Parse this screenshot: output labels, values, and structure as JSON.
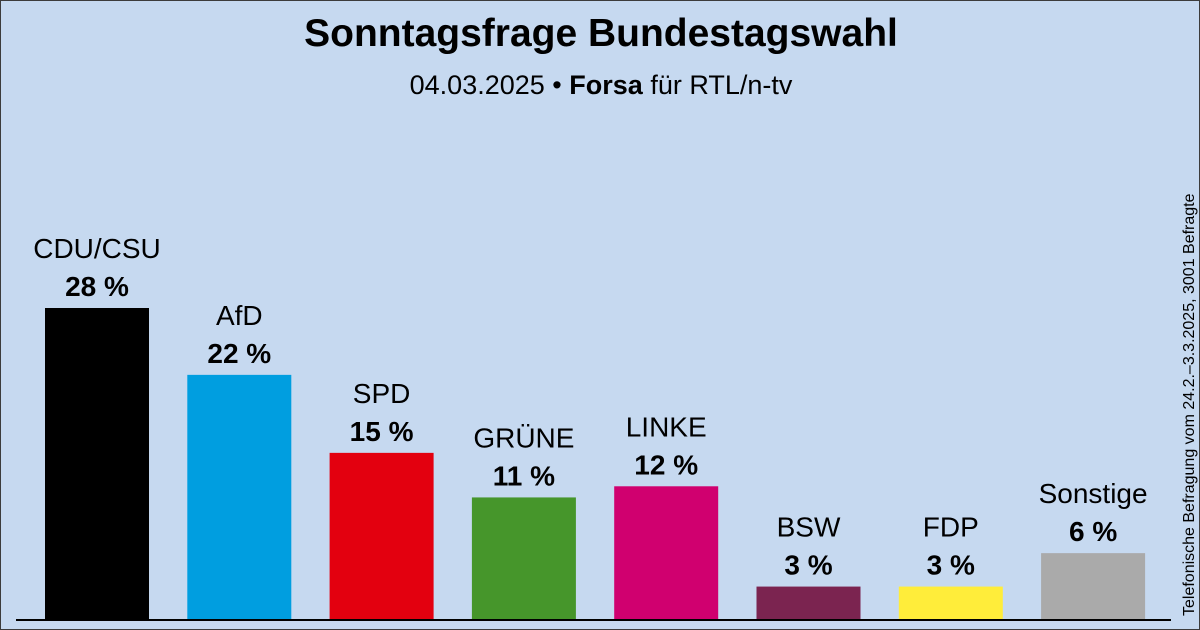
{
  "header": {
    "title": "Sonntagsfrage Bundestagswahl",
    "date": "04.03.2025",
    "separator": "•",
    "pollster": "Forsa",
    "client": "für RTL/n-tv"
  },
  "side_note": "Telefonische Befragung vom 24.2.–3.3.2025, 3001 Befragte",
  "chart_data": {
    "type": "bar",
    "title": "Sonntagsfrage Bundestagswahl",
    "subtitle": "04.03.2025 • Forsa für RTL/n-tv",
    "unit": "%",
    "categories": [
      "CDU/CSU",
      "AfD",
      "SPD",
      "GRÜNE",
      "LINKE",
      "BSW",
      "FDP",
      "Sonstige"
    ],
    "values": [
      28,
      22,
      15,
      11,
      12,
      3,
      3,
      6
    ],
    "value_labels": [
      "28 %",
      "22 %",
      "15 %",
      "11 %",
      "12 %",
      "3 %",
      "3 %",
      "6 %"
    ],
    "colors": [
      "#000000",
      "#009ee0",
      "#e3000f",
      "#46962b",
      "#d0006f",
      "#7b2450",
      "#ffed3a",
      "#aaaaaa"
    ],
    "ylim": [
      0,
      28
    ],
    "grid": false,
    "legend": "none"
  }
}
